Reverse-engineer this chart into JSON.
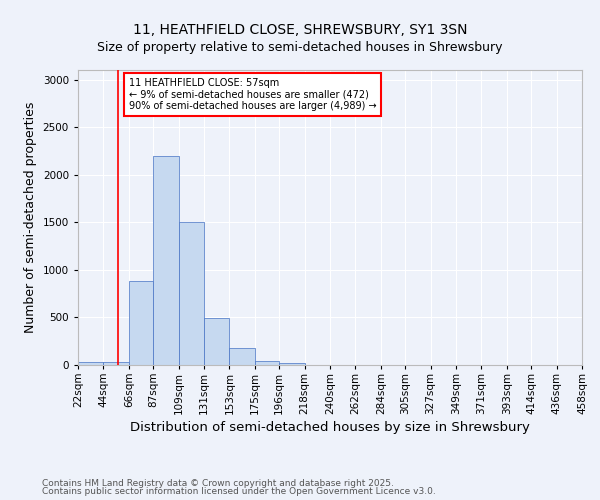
{
  "title1": "11, HEATHFIELD CLOSE, SHREWSBURY, SY1 3SN",
  "title2": "Size of property relative to semi-detached houses in Shrewsbury",
  "xlabel": "Distribution of semi-detached houses by size in Shrewsbury",
  "ylabel": "Number of semi-detached properties",
  "bin_labels": [
    "22sqm",
    "44sqm",
    "66sqm",
    "87sqm",
    "109sqm",
    "131sqm",
    "153sqm",
    "175sqm",
    "196sqm",
    "218sqm",
    "240sqm",
    "262sqm",
    "284sqm",
    "305sqm",
    "327sqm",
    "349sqm",
    "371sqm",
    "393sqm",
    "414sqm",
    "436sqm",
    "458sqm"
  ],
  "bin_edges": [
    22,
    44,
    66,
    87,
    109,
    131,
    153,
    175,
    196,
    218,
    240,
    262,
    284,
    305,
    327,
    349,
    371,
    393,
    414,
    436,
    458
  ],
  "bar_heights": [
    30,
    30,
    880,
    2200,
    1500,
    490,
    175,
    40,
    20,
    5,
    2,
    1,
    1,
    0,
    0,
    0,
    0,
    0,
    0,
    0
  ],
  "bar_color": "#c6d9f0",
  "bar_edge_color": "#4472c4",
  "property_line_x": 57,
  "property_line_color": "red",
  "annotation_text": "11 HEATHFIELD CLOSE: 57sqm\n← 9% of semi-detached houses are smaller (472)\n90% of semi-detached houses are larger (4,989) →",
  "annotation_box_color": "white",
  "annotation_box_edge_color": "red",
  "ylim": [
    0,
    3100
  ],
  "yticks": [
    0,
    500,
    1000,
    1500,
    2000,
    2500,
    3000
  ],
  "footer1": "Contains HM Land Registry data © Crown copyright and database right 2025.",
  "footer2": "Contains public sector information licensed under the Open Government Licence v3.0.",
  "bg_color": "#eef2fa",
  "plot_bg_color": "#eef2fa",
  "title1_fontsize": 10,
  "title2_fontsize": 9,
  "axis_label_fontsize": 9,
  "tick_fontsize": 7.5,
  "footer_fontsize": 6.5,
  "annotation_fontsize": 7
}
